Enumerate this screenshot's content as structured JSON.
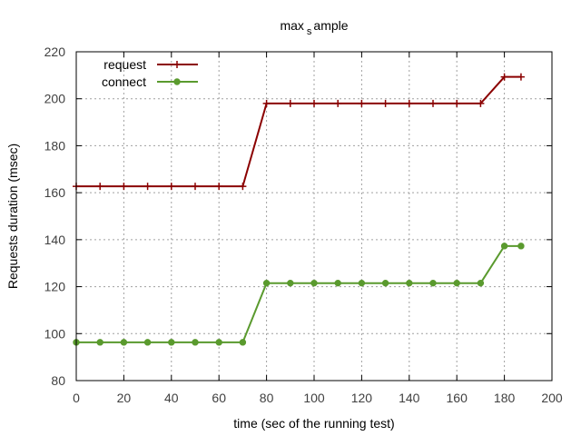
{
  "chart_data": {
    "type": "line",
    "title_main": "max",
    "title_sub": "s",
    "title_rest": "ample",
    "xlabel": "time (sec of the running test)",
    "ylabel": "Requests duration (msec)",
    "xlim": [
      0,
      200
    ],
    "ylim": [
      80,
      220
    ],
    "xticks": [
      0,
      20,
      40,
      60,
      80,
      100,
      120,
      140,
      160,
      180,
      200
    ],
    "yticks": [
      80,
      100,
      120,
      140,
      160,
      180,
      200,
      220
    ],
    "grid": true,
    "legend_position": "top-left",
    "series": [
      {
        "name": "request",
        "color": "#8b0000",
        "marker": "plus",
        "x": [
          0,
          10,
          20,
          30,
          40,
          50,
          60,
          70,
          80,
          90,
          100,
          110,
          120,
          130,
          140,
          150,
          160,
          170,
          180,
          187
        ],
        "y": [
          162.7,
          162.7,
          162.7,
          162.7,
          162.7,
          162.7,
          162.7,
          162.7,
          198,
          198,
          198,
          198,
          198,
          198,
          198,
          198,
          198,
          198,
          209.3,
          209.3
        ]
      },
      {
        "name": "connect",
        "color": "#5a9a2e",
        "marker": "dot",
        "x": [
          0,
          10,
          20,
          30,
          40,
          50,
          60,
          70,
          80,
          90,
          100,
          110,
          120,
          130,
          140,
          150,
          160,
          170,
          180,
          187
        ],
        "y": [
          96.3,
          96.3,
          96.3,
          96.3,
          96.3,
          96.3,
          96.3,
          96.3,
          121.5,
          121.5,
          121.5,
          121.5,
          121.5,
          121.5,
          121.5,
          121.5,
          121.5,
          121.5,
          137.3,
          137.3
        ]
      }
    ]
  }
}
